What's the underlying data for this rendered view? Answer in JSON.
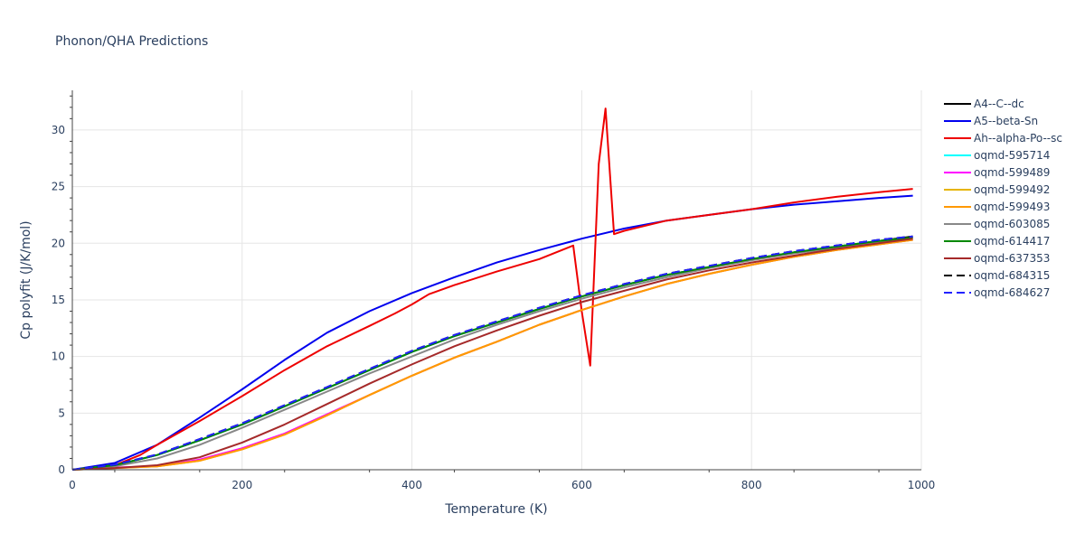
{
  "chart_data": {
    "type": "line",
    "title": "Phonon/QHA Predictions",
    "xlabel": "Temperature (K)",
    "ylabel": "Cp polyfit (J/K/mol)",
    "xlim": [
      0,
      1000
    ],
    "ylim": [
      0,
      33.5
    ],
    "x_ticks": [
      0,
      200,
      400,
      600,
      800,
      1000
    ],
    "y_ticks": [
      0,
      5,
      10,
      15,
      20,
      25,
      30
    ],
    "grid": true,
    "legend_position": "right",
    "series": [
      {
        "name": "A4--C--dc",
        "color": "#000000",
        "dash": "solid",
        "x": [
          0,
          50,
          100,
          150,
          200,
          250,
          300,
          350,
          400,
          450,
          500,
          550,
          600,
          650,
          700,
          750,
          800,
          850,
          900,
          950,
          990
        ],
        "y": [
          0,
          0.4,
          1.3,
          2.6,
          4.0,
          5.6,
          7.2,
          8.8,
          10.4,
          11.8,
          13.0,
          14.2,
          15.3,
          16.3,
          17.2,
          17.9,
          18.6,
          19.2,
          19.7,
          20.2,
          20.6
        ]
      },
      {
        "name": "A5--beta-Sn",
        "color": "#0000ee",
        "dash": "solid",
        "x": [
          0,
          50,
          100,
          150,
          200,
          250,
          300,
          350,
          400,
          450,
          500,
          550,
          600,
          650,
          700,
          750,
          800,
          850,
          900,
          950,
          990
        ],
        "y": [
          0,
          0.6,
          2.2,
          4.6,
          7.1,
          9.7,
          12.1,
          14.0,
          15.6,
          17.0,
          18.3,
          19.4,
          20.4,
          21.3,
          22.0,
          22.5,
          23.0,
          23.4,
          23.7,
          24.0,
          24.2
        ]
      },
      {
        "name": "Ah--alpha-Po--sc",
        "color": "#ee0000",
        "dash": "solid",
        "x": [
          0,
          50,
          80,
          100,
          150,
          200,
          250,
          300,
          350,
          380,
          400,
          420,
          450,
          500,
          550,
          590,
          600,
          610,
          620,
          628,
          638,
          650,
          700,
          750,
          800,
          850,
          900,
          950,
          990
        ],
        "y": [
          0,
          0.4,
          1.3,
          2.2,
          4.3,
          6.5,
          8.8,
          10.9,
          12.7,
          13.8,
          14.6,
          15.5,
          16.3,
          17.5,
          18.6,
          19.8,
          14.0,
          9.2,
          27.0,
          31.9,
          20.8,
          21.1,
          22.0,
          22.5,
          23.0,
          23.6,
          24.1,
          24.5,
          24.8
        ]
      },
      {
        "name": "oqmd-595714",
        "color": "#00ffff",
        "dash": "solid",
        "x": [
          0,
          50,
          100,
          150,
          200,
          250,
          300,
          350,
          400,
          450,
          500,
          550,
          600,
          650,
          700,
          750,
          800,
          850,
          900,
          950,
          990
        ],
        "y": [
          0,
          0.4,
          1.3,
          2.6,
          4.0,
          5.6,
          7.2,
          8.8,
          10.4,
          11.8,
          13.0,
          14.2,
          15.3,
          16.3,
          17.2,
          17.9,
          18.6,
          19.2,
          19.7,
          20.2,
          20.5
        ]
      },
      {
        "name": "oqmd-599489",
        "color": "#ff00ff",
        "dash": "solid",
        "x": [
          0,
          50,
          100,
          150,
          200,
          250,
          300,
          350,
          400,
          450,
          500,
          550,
          600,
          650,
          700,
          750,
          800,
          850,
          900,
          950,
          990
        ],
        "y": [
          0,
          0.2,
          0.3,
          0.9,
          1.9,
          3.2,
          4.9,
          6.6,
          8.3,
          9.9,
          11.3,
          12.8,
          14.1,
          15.3,
          16.4,
          17.3,
          18.1,
          18.8,
          19.4,
          19.9,
          20.3
        ]
      },
      {
        "name": "oqmd-599492",
        "color": "#e6b400",
        "dash": "solid",
        "x": [
          0,
          50,
          100,
          150,
          200,
          250,
          300,
          350,
          400,
          450,
          500,
          550,
          600,
          650,
          700,
          750,
          800,
          850,
          900,
          950,
          990
        ],
        "y": [
          0,
          0.15,
          0.3,
          0.8,
          1.8,
          3.1,
          4.8,
          6.6,
          8.3,
          9.9,
          11.3,
          12.8,
          14.1,
          15.3,
          16.4,
          17.3,
          18.1,
          18.8,
          19.4,
          19.9,
          20.3
        ]
      },
      {
        "name": "oqmd-599493",
        "color": "#ff9900",
        "dash": "solid",
        "x": [
          0,
          50,
          100,
          150,
          200,
          250,
          300,
          350,
          400,
          450,
          500,
          550,
          600,
          650,
          700,
          750,
          800,
          850,
          900,
          950,
          990
        ],
        "y": [
          0,
          0.15,
          0.3,
          0.8,
          1.8,
          3.1,
          4.8,
          6.6,
          8.3,
          9.9,
          11.3,
          12.8,
          14.1,
          15.3,
          16.4,
          17.3,
          18.1,
          18.8,
          19.4,
          19.9,
          20.3
        ]
      },
      {
        "name": "oqmd-603085",
        "color": "#888888",
        "dash": "solid",
        "x": [
          0,
          50,
          100,
          150,
          200,
          250,
          300,
          350,
          400,
          450,
          500,
          550,
          600,
          650,
          700,
          750,
          800,
          850,
          900,
          950,
          990
        ],
        "y": [
          0,
          0.3,
          1.0,
          2.2,
          3.7,
          5.3,
          6.9,
          8.5,
          10.0,
          11.5,
          12.8,
          14.0,
          15.1,
          16.1,
          17.0,
          17.8,
          18.5,
          19.1,
          19.6,
          20.1,
          20.4
        ]
      },
      {
        "name": "oqmd-614417",
        "color": "#008800",
        "dash": "solid",
        "x": [
          0,
          50,
          100,
          150,
          200,
          250,
          300,
          350,
          400,
          450,
          500,
          550,
          600,
          650,
          700,
          750,
          800,
          850,
          900,
          950,
          990
        ],
        "y": [
          0,
          0.4,
          1.3,
          2.6,
          4.0,
          5.6,
          7.2,
          8.8,
          10.4,
          11.8,
          13.0,
          14.2,
          15.3,
          16.3,
          17.2,
          17.9,
          18.6,
          19.2,
          19.7,
          20.2,
          20.5
        ]
      },
      {
        "name": "oqmd-637353",
        "color": "#a52a2a",
        "dash": "solid",
        "x": [
          0,
          50,
          100,
          150,
          200,
          250,
          300,
          350,
          400,
          450,
          500,
          550,
          600,
          650,
          700,
          750,
          800,
          850,
          900,
          950,
          990
        ],
        "y": [
          0,
          0.15,
          0.4,
          1.1,
          2.4,
          4.0,
          5.8,
          7.6,
          9.3,
          10.9,
          12.3,
          13.6,
          14.8,
          15.8,
          16.8,
          17.6,
          18.3,
          18.9,
          19.5,
          20.0,
          20.4
        ]
      },
      {
        "name": "oqmd-684315",
        "color": "#000000",
        "dash": "dash",
        "x": [
          0,
          50,
          100,
          150,
          200,
          250,
          300,
          350,
          400,
          450,
          500,
          550,
          600,
          650,
          700,
          750,
          800,
          850,
          900,
          950,
          990
        ],
        "y": [
          0,
          0.45,
          1.35,
          2.7,
          4.1,
          5.7,
          7.3,
          8.9,
          10.5,
          11.9,
          13.1,
          14.3,
          15.4,
          16.4,
          17.3,
          18.0,
          18.7,
          19.3,
          19.8,
          20.3,
          20.6
        ]
      },
      {
        "name": "oqmd-684627",
        "color": "#2222ff",
        "dash": "dash",
        "x": [
          0,
          50,
          100,
          150,
          200,
          250,
          300,
          350,
          400,
          450,
          500,
          550,
          600,
          650,
          700,
          750,
          800,
          850,
          900,
          950,
          990
        ],
        "y": [
          0,
          0.45,
          1.35,
          2.7,
          4.1,
          5.7,
          7.3,
          8.9,
          10.5,
          11.9,
          13.1,
          14.3,
          15.4,
          16.4,
          17.3,
          18.0,
          18.7,
          19.3,
          19.8,
          20.3,
          20.6
        ]
      }
    ]
  }
}
